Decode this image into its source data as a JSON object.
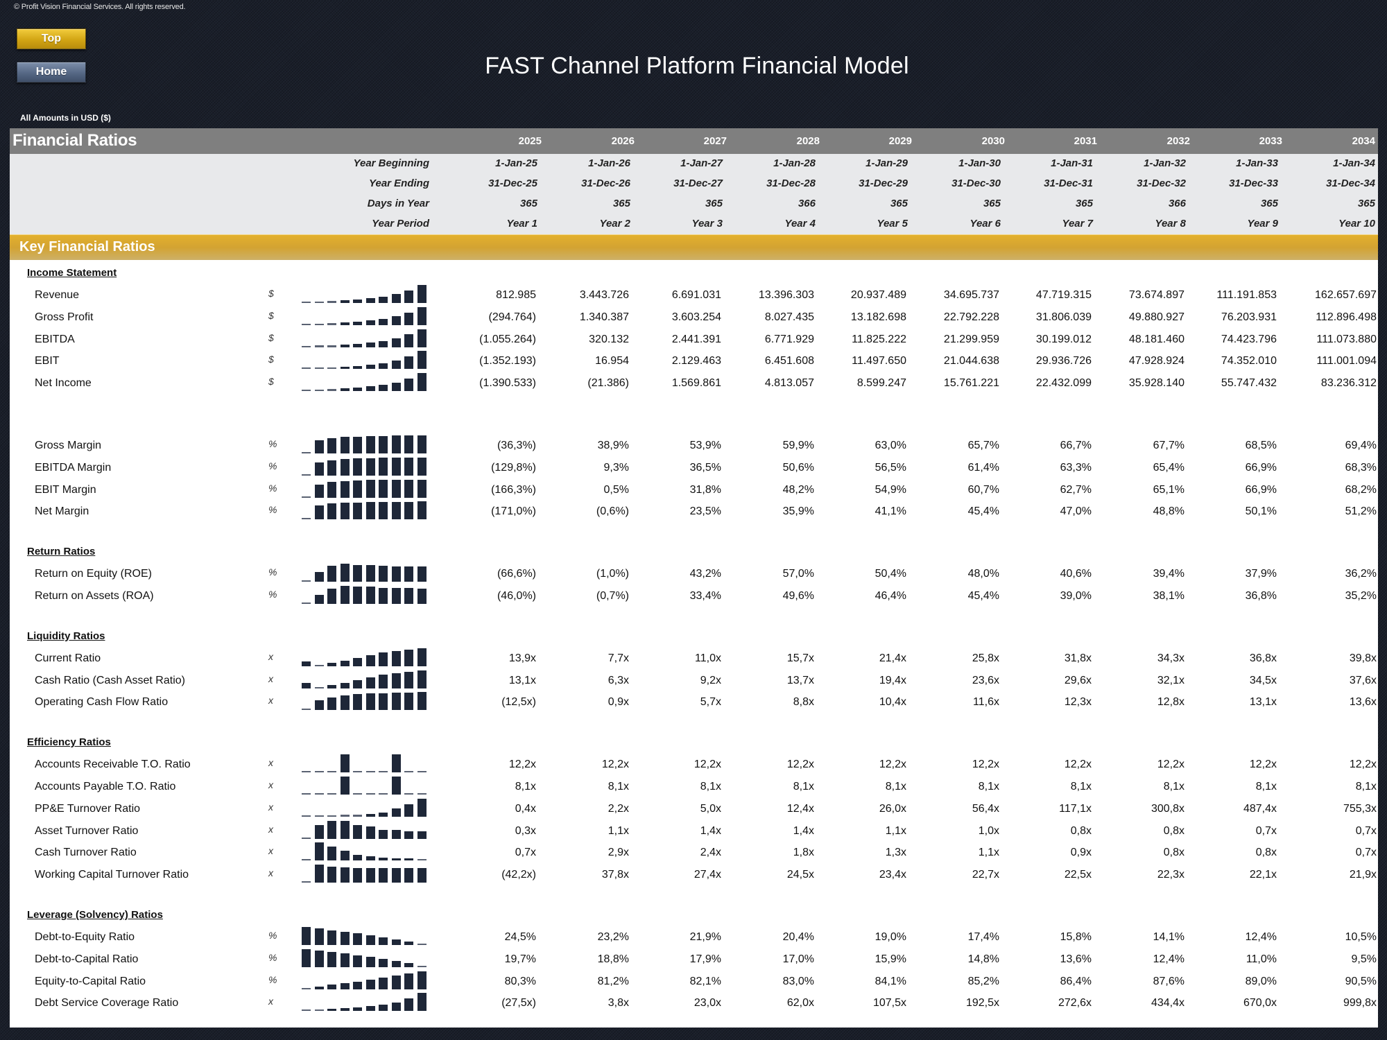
{
  "copyright": "© Profit Vision Financial Services. All rights reserved.",
  "nav": {
    "top_label": "Top",
    "home_label": "Home"
  },
  "title": "FAST Channel Platform Financial Model",
  "amounts_note": "All Amounts in  USD ($)",
  "header": {
    "title": "Financial Ratios",
    "years": [
      "2025",
      "2026",
      "2027",
      "2028",
      "2029",
      "2030",
      "2031",
      "2032",
      "2033",
      "2034"
    ]
  },
  "info_rows": [
    {
      "label": "Year Beginning",
      "values": [
        "1-Jan-25",
        "1-Jan-26",
        "1-Jan-27",
        "1-Jan-28",
        "1-Jan-29",
        "1-Jan-30",
        "1-Jan-31",
        "1-Jan-32",
        "1-Jan-33",
        "1-Jan-34"
      ]
    },
    {
      "label": "Year Ending",
      "values": [
        "31-Dec-25",
        "31-Dec-26",
        "31-Dec-27",
        "31-Dec-28",
        "31-Dec-29",
        "31-Dec-30",
        "31-Dec-31",
        "31-Dec-32",
        "31-Dec-33",
        "31-Dec-34"
      ]
    },
    {
      "label": "Days in Year",
      "values": [
        "365",
        "365",
        "365",
        "366",
        "365",
        "365",
        "365",
        "366",
        "365",
        "365"
      ]
    },
    {
      "label": "Year Period",
      "values": [
        "Year 1",
        "Year 2",
        "Year 3",
        "Year 4",
        "Year 5",
        "Year 6",
        "Year 7",
        "Year 8",
        "Year 9",
        "Year 10"
      ]
    }
  ],
  "section_bar": "Key Financial Ratios",
  "colors": {
    "header_gray": "#7f7f7f",
    "gold": "#d3a332",
    "spark": "#1e2738",
    "info_bg": "#e8e9eb"
  },
  "sections": [
    {
      "title": "Income Statement",
      "rows": [
        {
          "label": "Revenue",
          "unit": "$",
          "spark": [
            0.81,
            3.44,
            6.69,
            13.4,
            20.94,
            34.7,
            47.72,
            73.67,
            111.19,
            162.66
          ],
          "values": [
            "812.985",
            "3.443.726",
            "6.691.031",
            "13.396.303",
            "20.937.489",
            "34.695.737",
            "47.719.315",
            "73.674.897",
            "111.191.853",
            "162.657.697"
          ]
        },
        {
          "label": "Gross Profit",
          "unit": "$",
          "spark": [
            -0.29,
            1.34,
            3.6,
            8.03,
            13.18,
            22.79,
            31.81,
            49.88,
            76.2,
            112.9
          ],
          "values": [
            "(294.764)",
            "1.340.387",
            "3.603.254",
            "8.027.435",
            "13.182.698",
            "22.792.228",
            "31.806.039",
            "49.880.927",
            "76.203.931",
            "112.896.498"
          ]
        },
        {
          "label": "EBITDA",
          "unit": "$",
          "spark": [
            -1.06,
            0.32,
            2.44,
            6.77,
            11.83,
            21.3,
            30.2,
            48.18,
            74.42,
            111.07
          ],
          "values": [
            "(1.055.264)",
            "320.132",
            "2.441.391",
            "6.771.929",
            "11.825.222",
            "21.299.959",
            "30.199.012",
            "48.181.460",
            "74.423.796",
            "111.073.880"
          ]
        },
        {
          "label": "EBIT",
          "unit": "$",
          "spark": [
            -1.35,
            0.02,
            2.13,
            6.45,
            11.5,
            21.04,
            29.94,
            47.93,
            74.35,
            111.0
          ],
          "values": [
            "(1.352.193)",
            "16.954",
            "2.129.463",
            "6.451.608",
            "11.497.650",
            "21.044.638",
            "29.936.726",
            "47.928.924",
            "74.352.010",
            "111.001.094"
          ]
        },
        {
          "label": "Net Income",
          "unit": "$",
          "spark": [
            -1.39,
            -0.02,
            1.57,
            4.81,
            8.6,
            15.76,
            22.43,
            35.93,
            55.75,
            83.24
          ],
          "values": [
            "(1.390.533)",
            "(21.386)",
            "1.569.861",
            "4.813.057",
            "8.599.247",
            "15.761.221",
            "22.432.099",
            "35.928.140",
            "55.747.432",
            "83.236.312"
          ]
        }
      ]
    },
    {
      "title": "",
      "rows": [
        {
          "label": "Gross Margin",
          "unit": "%",
          "spark": [
            -36.3,
            38.9,
            53.9,
            59.9,
            63.0,
            65.7,
            66.7,
            67.7,
            68.5,
            69.4
          ],
          "values": [
            "(36,3%)",
            "38,9%",
            "53,9%",
            "59,9%",
            "63,0%",
            "65,7%",
            "66,7%",
            "67,7%",
            "68,5%",
            "69,4%"
          ]
        },
        {
          "label": "EBITDA Margin",
          "unit": "%",
          "spark": [
            -129.8,
            9.3,
            36.5,
            50.6,
            56.5,
            61.4,
            63.3,
            65.4,
            66.9,
            68.3
          ],
          "values": [
            "(129,8%)",
            "9,3%",
            "36,5%",
            "50,6%",
            "56,5%",
            "61,4%",
            "63,3%",
            "65,4%",
            "66,9%",
            "68,3%"
          ]
        },
        {
          "label": "EBIT Margin",
          "unit": "%",
          "spark": [
            -166.3,
            0.5,
            31.8,
            48.2,
            54.9,
            60.7,
            62.7,
            65.1,
            66.9,
            68.2
          ],
          "values": [
            "(166,3%)",
            "0,5%",
            "31,8%",
            "48,2%",
            "54,9%",
            "60,7%",
            "62,7%",
            "65,1%",
            "66,9%",
            "68,2%"
          ]
        },
        {
          "label": "Net Margin",
          "unit": "%",
          "spark": [
            -171.0,
            -0.6,
            23.5,
            35.9,
            41.1,
            45.4,
            47.0,
            48.8,
            50.1,
            51.2
          ],
          "values": [
            "(171,0%)",
            "(0,6%)",
            "23,5%",
            "35,9%",
            "41,1%",
            "45,4%",
            "47,0%",
            "48,8%",
            "50,1%",
            "51,2%"
          ]
        }
      ]
    },
    {
      "title": "Return Ratios",
      "rows": [
        {
          "label": "Return on Equity (ROE)",
          "unit": "%",
          "spark": [
            -66.6,
            -1.0,
            43.2,
            57.0,
            50.4,
            48.0,
            40.6,
            39.4,
            37.9,
            36.2
          ],
          "values": [
            "(66,6%)",
            "(1,0%)",
            "43,2%",
            "57,0%",
            "50,4%",
            "48,0%",
            "40,6%",
            "39,4%",
            "37,9%",
            "36,2%"
          ]
        },
        {
          "label": "Return on Assets (ROA)",
          "unit": "%",
          "spark": [
            -46.0,
            -0.7,
            33.4,
            49.6,
            46.4,
            45.4,
            39.0,
            38.1,
            36.8,
            35.2
          ],
          "values": [
            "(46,0%)",
            "(0,7%)",
            "33,4%",
            "49,6%",
            "46,4%",
            "45,4%",
            "39,0%",
            "38,1%",
            "36,8%",
            "35,2%"
          ]
        }
      ]
    },
    {
      "title": "Liquidity Ratios",
      "rows": [
        {
          "label": "Current Ratio",
          "unit": "x",
          "spark": [
            13.9,
            7.7,
            11.0,
            15.7,
            21.4,
            25.8,
            31.8,
            34.3,
            36.8,
            39.8
          ],
          "values": [
            "13,9x",
            "7,7x",
            "11,0x",
            "15,7x",
            "21,4x",
            "25,8x",
            "31,8x",
            "34,3x",
            "36,8x",
            "39,8x"
          ]
        },
        {
          "label": "Cash Ratio (Cash Asset Ratio)",
          "unit": "x",
          "spark": [
            13.1,
            6.3,
            9.2,
            13.7,
            19.4,
            23.6,
            29.6,
            32.1,
            34.5,
            37.6
          ],
          "values": [
            "13,1x",
            "6,3x",
            "9,2x",
            "13,7x",
            "19,4x",
            "23,6x",
            "29,6x",
            "32,1x",
            "34,5x",
            "37,6x"
          ]
        },
        {
          "label": "Operating Cash Flow Ratio",
          "unit": "x",
          "spark": [
            -12.5,
            0.9,
            5.7,
            8.8,
            10.4,
            11.6,
            12.3,
            12.8,
            13.1,
            13.6
          ],
          "values": [
            "(12,5x)",
            "0,9x",
            "5,7x",
            "8,8x",
            "10,4x",
            "11,6x",
            "12,3x",
            "12,8x",
            "13,1x",
            "13,6x"
          ]
        }
      ]
    },
    {
      "title": "Efficiency Ratios",
      "rows": [
        {
          "label": "Accounts Receivable T.O. Ratio",
          "unit": "x",
          "spark": [
            12.2,
            12.2,
            12.2,
            12.3,
            12.2,
            12.2,
            12.2,
            12.3,
            12.2,
            12.2
          ],
          "values": [
            "12,2x",
            "12,2x",
            "12,2x",
            "12,2x",
            "12,2x",
            "12,2x",
            "12,2x",
            "12,2x",
            "12,2x",
            "12,2x"
          ]
        },
        {
          "label": "Accounts Payable T.O. Ratio",
          "unit": "x",
          "spark": [
            8.1,
            8.1,
            8.1,
            8.2,
            8.1,
            8.1,
            8.1,
            8.2,
            8.1,
            8.1
          ],
          "values": [
            "8,1x",
            "8,1x",
            "8,1x",
            "8,1x",
            "8,1x",
            "8,1x",
            "8,1x",
            "8,1x",
            "8,1x",
            "8,1x"
          ]
        },
        {
          "label": "PP&E Turnover Ratio",
          "unit": "x",
          "spark": [
            0.4,
            2.2,
            5.0,
            12.4,
            26.0,
            56.4,
            117.1,
            300.8,
            487.4,
            755.3
          ],
          "values": [
            "0,4x",
            "2,2x",
            "5,0x",
            "12,4x",
            "26,0x",
            "56,4x",
            "117,1x",
            "300,8x",
            "487,4x",
            "755,3x"
          ]
        },
        {
          "label": "Asset Turnover Ratio",
          "unit": "x",
          "spark": [
            0.3,
            1.1,
            1.4,
            1.4,
            1.1,
            1.0,
            0.8,
            0.8,
            0.7,
            0.7
          ],
          "values": [
            "0,3x",
            "1,1x",
            "1,4x",
            "1,4x",
            "1,1x",
            "1,0x",
            "0,8x",
            "0,8x",
            "0,7x",
            "0,7x"
          ]
        },
        {
          "label": "Cash Turnover Ratio",
          "unit": "x",
          "spark": [
            0.7,
            2.9,
            2.4,
            1.8,
            1.3,
            1.1,
            0.9,
            0.8,
            0.8,
            0.7
          ],
          "values": [
            "0,7x",
            "2,9x",
            "2,4x",
            "1,8x",
            "1,3x",
            "1,1x",
            "0,9x",
            "0,8x",
            "0,8x",
            "0,7x"
          ]
        },
        {
          "label": "Working Capital Turnover Ratio",
          "unit": "x",
          "spark": [
            -42.2,
            37.8,
            27.4,
            24.5,
            23.4,
            22.7,
            22.5,
            22.3,
            22.1,
            21.9
          ],
          "values": [
            "(42,2x)",
            "37,8x",
            "27,4x",
            "24,5x",
            "23,4x",
            "22,7x",
            "22,5x",
            "22,3x",
            "22,1x",
            "21,9x"
          ]
        }
      ]
    },
    {
      "title": "Leverage (Solvency) Ratios",
      "rows": [
        {
          "label": "Debt-to-Equity Ratio",
          "unit": "%",
          "spark": [
            24.5,
            23.2,
            21.9,
            20.4,
            19.0,
            17.4,
            15.8,
            14.1,
            12.4,
            10.5
          ],
          "values": [
            "24,5%",
            "23,2%",
            "21,9%",
            "20,4%",
            "19,0%",
            "17,4%",
            "15,8%",
            "14,1%",
            "12,4%",
            "10,5%"
          ]
        },
        {
          "label": "Debt-to-Capital Ratio",
          "unit": "%",
          "spark": [
            19.7,
            18.8,
            17.9,
            17.0,
            15.9,
            14.8,
            13.6,
            12.4,
            11.0,
            9.5
          ],
          "values": [
            "19,7%",
            "18,8%",
            "17,9%",
            "17,0%",
            "15,9%",
            "14,8%",
            "13,6%",
            "12,4%",
            "11,0%",
            "9,5%"
          ]
        },
        {
          "label": "Equity-to-Capital Ratio",
          "unit": "%",
          "spark": [
            80.3,
            81.2,
            82.1,
            83.0,
            84.1,
            85.2,
            86.4,
            87.6,
            89.0,
            90.5
          ],
          "values": [
            "80,3%",
            "81,2%",
            "82,1%",
            "83,0%",
            "84,1%",
            "85,2%",
            "86,4%",
            "87,6%",
            "89,0%",
            "90,5%"
          ]
        },
        {
          "label": "Debt Service Coverage Ratio",
          "unit": "x",
          "spark": [
            -27.5,
            3.8,
            23.0,
            62.0,
            107.5,
            192.5,
            272.6,
            434.4,
            670.0,
            999.8
          ],
          "values": [
            "(27,5x)",
            "3,8x",
            "23,0x",
            "62,0x",
            "107,5x",
            "192,5x",
            "272,6x",
            "434,4x",
            "670,0x",
            "999,8x"
          ]
        }
      ]
    }
  ]
}
